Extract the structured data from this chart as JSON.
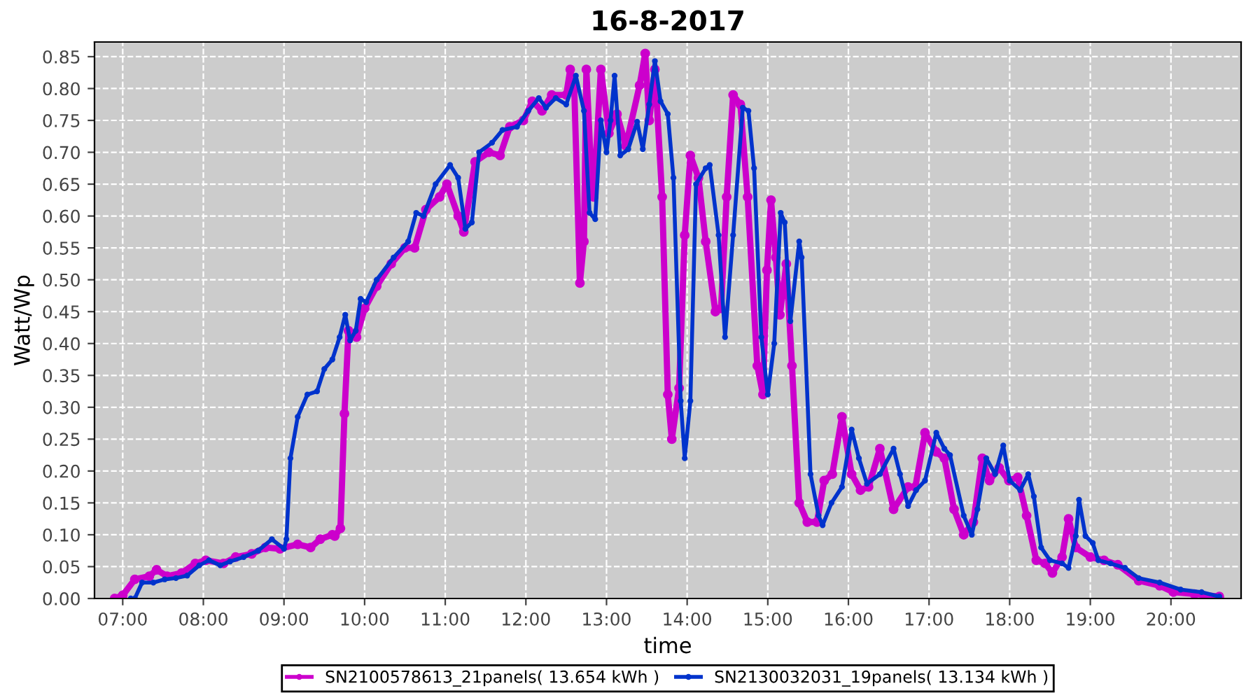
{
  "chart_data": {
    "type": "line",
    "title": "16-8-2017",
    "xlabel": "time",
    "ylabel": "Watt/Wp",
    "xlim": [
      6.65,
      20.87
    ],
    "ylim": [
      0,
      0.873
    ],
    "xticks": [
      {
        "value": 7,
        "label": "07:00"
      },
      {
        "value": 8,
        "label": "08:00"
      },
      {
        "value": 9,
        "label": "09:00"
      },
      {
        "value": 10,
        "label": "10:00"
      },
      {
        "value": 11,
        "label": "11:00"
      },
      {
        "value": 12,
        "label": "12:00"
      },
      {
        "value": 13,
        "label": "13:00"
      },
      {
        "value": 14,
        "label": "14:00"
      },
      {
        "value": 15,
        "label": "15:00"
      },
      {
        "value": 16,
        "label": "16:00"
      },
      {
        "value": 17,
        "label": "17:00"
      },
      {
        "value": 18,
        "label": "18:00"
      },
      {
        "value": 19,
        "label": "19:00"
      },
      {
        "value": 20,
        "label": "20:00"
      }
    ],
    "yticks": [
      {
        "value": 0,
        "label": "0.00"
      },
      {
        "value": 0.05,
        "label": "0.05"
      },
      {
        "value": 0.1,
        "label": "0.10"
      },
      {
        "value": 0.15,
        "label": "0.15"
      },
      {
        "value": 0.2,
        "label": "0.20"
      },
      {
        "value": 0.25,
        "label": "0.25"
      },
      {
        "value": 0.3,
        "label": "0.30"
      },
      {
        "value": 0.35,
        "label": "0.35"
      },
      {
        "value": 0.4,
        "label": "0.40"
      },
      {
        "value": 0.45,
        "label": "0.45"
      },
      {
        "value": 0.5,
        "label": "0.50"
      },
      {
        "value": 0.55,
        "label": "0.55"
      },
      {
        "value": 0.6,
        "label": "0.60"
      },
      {
        "value": 0.65,
        "label": "0.65"
      },
      {
        "value": 0.7,
        "label": "0.70"
      },
      {
        "value": 0.75,
        "label": "0.75"
      },
      {
        "value": 0.8,
        "label": "0.80"
      },
      {
        "value": 0.85,
        "label": "0.85"
      }
    ],
    "grid": true,
    "legend": "bottom",
    "marker": "circle",
    "line_style": "solid",
    "series": [
      {
        "name": "SN2100578613_21panels( 13.654 kWh )",
        "color": "#cc00cc",
        "x": [
          6.9,
          7.0,
          7.15,
          7.33,
          7.42,
          7.55,
          7.73,
          7.9,
          8.03,
          8.25,
          8.4,
          8.6,
          8.77,
          8.95,
          9.17,
          9.33,
          9.45,
          9.6,
          9.63,
          9.7,
          9.75,
          9.8,
          9.9,
          10.0,
          10.15,
          10.33,
          10.5,
          10.62,
          10.76,
          10.93,
          11.02,
          11.16,
          11.23,
          11.37,
          11.54,
          11.68,
          11.8,
          11.97,
          12.08,
          12.2,
          12.32,
          12.5,
          12.55,
          12.6,
          12.67,
          12.72,
          12.75,
          12.8,
          12.84,
          12.93,
          13.03,
          13.13,
          13.24,
          13.41,
          13.48,
          13.53,
          13.6,
          13.69,
          13.76,
          13.81,
          13.9,
          13.97,
          14.04,
          14.14,
          14.23,
          14.35,
          14.42,
          14.49,
          14.57,
          14.66,
          14.75,
          14.87,
          14.94,
          14.99,
          15.04,
          15.1,
          15.15,
          15.23,
          15.3,
          15.39,
          15.49,
          15.61,
          15.7,
          15.8,
          15.92,
          16.04,
          16.15,
          16.25,
          16.39,
          16.56,
          16.74,
          16.83,
          16.95,
          17.09,
          17.19,
          17.31,
          17.43,
          17.55,
          17.66,
          17.75,
          17.87,
          17.99,
          18.1,
          18.21,
          18.33,
          18.44,
          18.53,
          18.65,
          18.73,
          18.82,
          19.0,
          19.17,
          19.34,
          19.6,
          19.86,
          20.03,
          20.29,
          20.6
        ],
        "values": [
          0,
          0.005,
          0.03,
          0.035,
          0.045,
          0.035,
          0.04,
          0.055,
          0.06,
          0.055,
          0.065,
          0.07,
          0.08,
          0.078,
          0.085,
          0.08,
          0.093,
          0.1,
          0.098,
          0.11,
          0.29,
          0.42,
          0.41,
          0.455,
          0.49,
          0.525,
          0.55,
          0.55,
          0.61,
          0.63,
          0.65,
          0.6,
          0.575,
          0.685,
          0.7,
          0.695,
          0.74,
          0.75,
          0.78,
          0.765,
          0.79,
          0.79,
          0.83,
          0.8,
          0.495,
          0.56,
          0.83,
          0.695,
          0.63,
          0.83,
          0.73,
          0.76,
          0.71,
          0.805,
          0.855,
          0.75,
          0.83,
          0.63,
          0.32,
          0.25,
          0.33,
          0.57,
          0.695,
          0.66,
          0.56,
          0.45,
          0.455,
          0.63,
          0.79,
          0.775,
          0.63,
          0.365,
          0.32,
          0.515,
          0.625,
          0.535,
          0.445,
          0.525,
          0.365,
          0.15,
          0.12,
          0.12,
          0.185,
          0.195,
          0.285,
          0.195,
          0.17,
          0.175,
          0.235,
          0.14,
          0.175,
          0.175,
          0.26,
          0.23,
          0.22,
          0.14,
          0.1,
          0.12,
          0.22,
          0.185,
          0.205,
          0.185,
          0.19,
          0.13,
          0.06,
          0.055,
          0.04,
          0.065,
          0.125,
          0.08,
          0.065,
          0.06,
          0.053,
          0.028,
          0.02,
          0.01,
          0.007,
          0.003
        ]
      },
      {
        "name": "SN2130032031_19panels( 13.134 kWh )",
        "color": "#0033cc",
        "x": [
          7.1,
          7.15,
          7.24,
          7.38,
          7.52,
          7.66,
          7.8,
          7.95,
          8.07,
          8.21,
          8.33,
          8.5,
          8.68,
          8.85,
          9.0,
          9.03,
          9.08,
          9.17,
          9.29,
          9.41,
          9.5,
          9.6,
          9.69,
          9.76,
          9.82,
          9.89,
          9.95,
          10.02,
          10.15,
          10.36,
          10.54,
          10.64,
          10.73,
          10.88,
          11.06,
          11.16,
          11.25,
          11.33,
          11.42,
          11.58,
          11.71,
          11.89,
          12.03,
          12.16,
          12.25,
          12.37,
          12.5,
          12.62,
          12.72,
          12.79,
          12.86,
          12.93,
          13.0,
          13.05,
          13.1,
          13.17,
          13.27,
          13.38,
          13.45,
          13.53,
          13.6,
          13.67,
          13.76,
          13.83,
          13.92,
          13.97,
          14.04,
          14.11,
          14.23,
          14.28,
          14.39,
          14.47,
          14.57,
          14.69,
          14.76,
          14.83,
          14.92,
          15.0,
          15.08,
          15.16,
          15.21,
          15.28,
          15.39,
          15.42,
          15.53,
          15.63,
          15.68,
          15.79,
          15.92,
          16.04,
          16.13,
          16.23,
          16.39,
          16.56,
          16.64,
          16.74,
          16.84,
          16.95,
          17.09,
          17.19,
          17.26,
          17.43,
          17.53,
          17.6,
          17.71,
          17.82,
          17.92,
          18.0,
          18.13,
          18.23,
          18.3,
          18.39,
          18.5,
          18.65,
          18.73,
          18.82,
          18.86,
          18.94,
          19.03,
          19.1,
          19.25,
          19.43,
          19.6,
          19.86,
          20.12,
          20.38,
          20.6
        ],
        "values": [
          0,
          0,
          0.025,
          0.025,
          0.03,
          0.032,
          0.036,
          0.052,
          0.06,
          0.052,
          0.058,
          0.065,
          0.075,
          0.093,
          0.078,
          0.093,
          0.22,
          0.285,
          0.32,
          0.325,
          0.36,
          0.375,
          0.41,
          0.445,
          0.405,
          0.42,
          0.47,
          0.465,
          0.5,
          0.535,
          0.56,
          0.605,
          0.6,
          0.65,
          0.68,
          0.66,
          0.58,
          0.59,
          0.7,
          0.715,
          0.735,
          0.74,
          0.765,
          0.785,
          0.77,
          0.785,
          0.775,
          0.82,
          0.765,
          0.605,
          0.595,
          0.75,
          0.7,
          0.75,
          0.82,
          0.695,
          0.705,
          0.748,
          0.705,
          0.775,
          0.843,
          0.78,
          0.76,
          0.66,
          0.31,
          0.22,
          0.31,
          0.65,
          0.675,
          0.68,
          0.57,
          0.41,
          0.57,
          0.77,
          0.765,
          0.675,
          0.41,
          0.32,
          0.4,
          0.605,
          0.59,
          0.435,
          0.56,
          0.535,
          0.195,
          0.13,
          0.115,
          0.15,
          0.175,
          0.265,
          0.22,
          0.18,
          0.195,
          0.235,
          0.195,
          0.145,
          0.17,
          0.185,
          0.26,
          0.235,
          0.225,
          0.13,
          0.1,
          0.14,
          0.22,
          0.195,
          0.24,
          0.185,
          0.17,
          0.195,
          0.16,
          0.08,
          0.06,
          0.055,
          0.048,
          0.098,
          0.155,
          0.098,
          0.087,
          0.06,
          0.055,
          0.048,
          0.032,
          0.025,
          0.014,
          0.01,
          0.003
        ]
      }
    ]
  }
}
